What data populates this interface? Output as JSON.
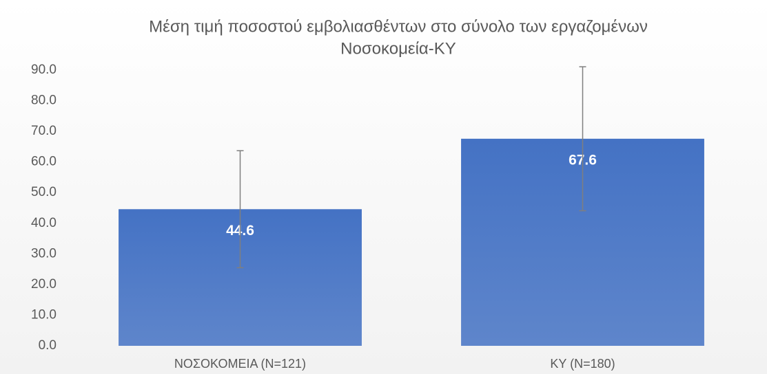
{
  "chart_data": {
    "type": "bar",
    "title": [
      "Μέση τιμή ποσοστού εμβολιασθέντων στο σύνολο των εργαζομένων",
      "Νοσοκομεία-ΚΥ"
    ],
    "categories": [
      "ΝΟΣΟΚΟΜΕΙΑ (N=121)",
      "ΚΥ (N=180)"
    ],
    "values": [
      44.6,
      67.6
    ],
    "errors": [
      19.1,
      23.5
    ],
    "color": "#4472c4",
    "error_color": "#7f7f7f",
    "ylim": [
      0,
      90
    ],
    "yticks": [
      {
        "value": 0,
        "label": "0.0"
      },
      {
        "value": 10,
        "label": "10.0"
      },
      {
        "value": 20,
        "label": "20.0"
      },
      {
        "value": 30,
        "label": "30.0"
      },
      {
        "value": 40,
        "label": "40.0"
      },
      {
        "value": 50,
        "label": "50.0"
      },
      {
        "value": 60,
        "label": "60.0"
      },
      {
        "value": 70,
        "label": "70.0"
      },
      {
        "value": 80,
        "label": "80.0"
      },
      {
        "value": 90,
        "label": "90.0"
      }
    ],
    "grid": false
  }
}
